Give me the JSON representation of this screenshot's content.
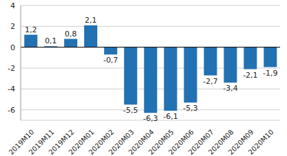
{
  "chart_data": {
    "type": "bar",
    "categories": [
      "2019M10",
      "2019M11",
      "2019M12",
      "2020M01",
      "2020M02",
      "2020M03",
      "2020M04",
      "2020M05",
      "2020M06",
      "2020M07",
      "2020M08",
      "2020M09",
      "2020M10"
    ],
    "values": [
      1.2,
      0.1,
      0.8,
      2.1,
      -0.7,
      -5.5,
      -6.3,
      -6.1,
      -5.3,
      -2.7,
      -3.4,
      -2.1,
      -1.9
    ],
    "value_labels": [
      "1,2",
      "0,1",
      "0,8",
      "2,1",
      "-0,7",
      "-5,5",
      "-6,3",
      "-6,1",
      "-5,3",
      "-2,7",
      "-3,4",
      "-2,1",
      "-1,9"
    ],
    "color": "#2271b3",
    "ylim": [
      -7,
      4
    ],
    "yticks": [
      -6,
      -4,
      -2,
      0,
      2,
      4
    ],
    "grid": true,
    "data_labels": true
  }
}
